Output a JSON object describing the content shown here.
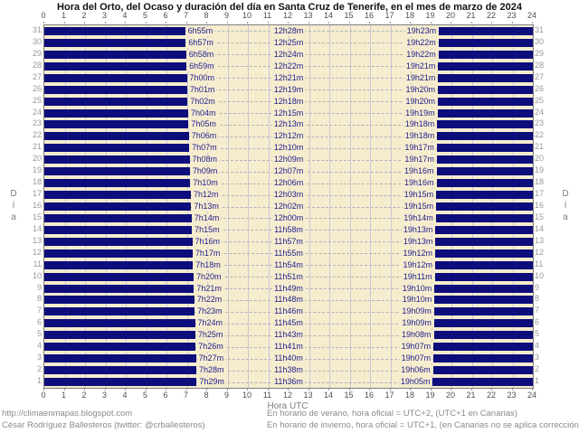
{
  "chart": {
    "title": "Hora del Orto, del Ocaso y duración del día en Santa Cruz de Tenerife, en el mes de marzo de 2024",
    "xlabel": "Hora UTC",
    "ylabel": "Día"
  },
  "footer": {
    "url": "http://climaenmapas.blogspot.com",
    "author": "César Rodríguez Ballesteros (twitter: @crballesteros)",
    "note_summer": "En horario de verano, hora oficial = UTC+2, (UTC+1 en Canarias)",
    "note_winter": "En horario de invierno, hora oficial = UTC+1, (en Canarias no se aplica corrección)"
  },
  "chart_data": {
    "type": "bar",
    "orientation": "horizontal",
    "title": "Hora del Orto, del Ocaso y duración del día en Santa Cruz de Tenerife, en el mes de marzo de 2024",
    "xlabel": "Hora UTC",
    "ylabel": "Día",
    "xlim": [
      0,
      24
    ],
    "x_ticks": [
      0,
      1,
      2,
      3,
      4,
      5,
      6,
      7,
      8,
      9,
      10,
      11,
      12,
      13,
      14,
      15,
      16,
      17,
      18,
      19,
      20,
      21,
      22,
      23,
      24
    ],
    "grid": true,
    "bars_represent": "night hours (from 0h to sunrise, and from sunset to 24h); daytime span left uncovered",
    "colors": {
      "bar": "#0d0d7b",
      "plot_background": "#f6ecce",
      "label_text": "#1d1d8e",
      "gridline": "#c9c9d6",
      "day_axis_text": "#9a9a9a",
      "hour_axis_text": "#4f4f4f",
      "footer_text": "#8a8a8a"
    },
    "days": [
      {
        "day": 31,
        "sunrise": "6h55m",
        "duration": "12h28m",
        "sunset": "19h23m"
      },
      {
        "day": 30,
        "sunrise": "6h57m",
        "duration": "12h25m",
        "sunset": "19h22m"
      },
      {
        "day": 29,
        "sunrise": "6h58m",
        "duration": "12h24m",
        "sunset": "19h22m"
      },
      {
        "day": 28,
        "sunrise": "6h59m",
        "duration": "12h22m",
        "sunset": "19h21m"
      },
      {
        "day": 27,
        "sunrise": "7h00m",
        "duration": "12h21m",
        "sunset": "19h21m"
      },
      {
        "day": 26,
        "sunrise": "7h01m",
        "duration": "12h19m",
        "sunset": "19h20m"
      },
      {
        "day": 25,
        "sunrise": "7h02m",
        "duration": "12h18m",
        "sunset": "19h20m"
      },
      {
        "day": 24,
        "sunrise": "7h04m",
        "duration": "12h15m",
        "sunset": "19h19m"
      },
      {
        "day": 23,
        "sunrise": "7h05m",
        "duration": "12h13m",
        "sunset": "19h18m"
      },
      {
        "day": 22,
        "sunrise": "7h06m",
        "duration": "12h12m",
        "sunset": "19h18m"
      },
      {
        "day": 21,
        "sunrise": "7h07m",
        "duration": "12h10m",
        "sunset": "19h17m"
      },
      {
        "day": 20,
        "sunrise": "7h08m",
        "duration": "12h09m",
        "sunset": "19h17m"
      },
      {
        "day": 19,
        "sunrise": "7h09m",
        "duration": "12h07m",
        "sunset": "19h16m"
      },
      {
        "day": 18,
        "sunrise": "7h10m",
        "duration": "12h06m",
        "sunset": "19h16m"
      },
      {
        "day": 17,
        "sunrise": "7h12m",
        "duration": "12h03m",
        "sunset": "19h15m"
      },
      {
        "day": 16,
        "sunrise": "7h13m",
        "duration": "12h02m",
        "sunset": "19h15m"
      },
      {
        "day": 15,
        "sunrise": "7h14m",
        "duration": "12h00m",
        "sunset": "19h14m"
      },
      {
        "day": 14,
        "sunrise": "7h15m",
        "duration": "11h58m",
        "sunset": "19h13m"
      },
      {
        "day": 13,
        "sunrise": "7h16m",
        "duration": "11h57m",
        "sunset": "19h13m"
      },
      {
        "day": 12,
        "sunrise": "7h17m",
        "duration": "11h55m",
        "sunset": "19h12m"
      },
      {
        "day": 11,
        "sunrise": "7h18m",
        "duration": "11h54m",
        "sunset": "19h12m"
      },
      {
        "day": 10,
        "sunrise": "7h20m",
        "duration": "11h51m",
        "sunset": "19h11m"
      },
      {
        "day": 9,
        "sunrise": "7h21m",
        "duration": "11h49m",
        "sunset": "19h10m"
      },
      {
        "day": 8,
        "sunrise": "7h22m",
        "duration": "11h48m",
        "sunset": "19h10m"
      },
      {
        "day": 7,
        "sunrise": "7h23m",
        "duration": "11h46m",
        "sunset": "19h09m"
      },
      {
        "day": 6,
        "sunrise": "7h24m",
        "duration": "11h45m",
        "sunset": "19h09m"
      },
      {
        "day": 5,
        "sunrise": "7h25m",
        "duration": "11h43m",
        "sunset": "19h08m"
      },
      {
        "day": 4,
        "sunrise": "7h26m",
        "duration": "11h41m",
        "sunset": "19h07m"
      },
      {
        "day": 3,
        "sunrise": "7h27m",
        "duration": "11h40m",
        "sunset": "19h07m"
      },
      {
        "day": 2,
        "sunrise": "7h28m",
        "duration": "11h38m",
        "sunset": "19h06m"
      },
      {
        "day": 1,
        "sunrise": "7h29m",
        "duration": "11h36m",
        "sunset": "19h05m"
      }
    ]
  }
}
